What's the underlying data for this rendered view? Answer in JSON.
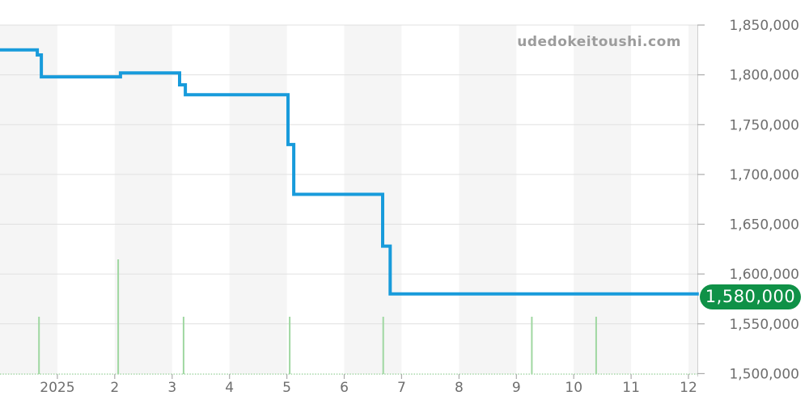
{
  "watermark_text": "udedokeitoushi.com",
  "current_price_badge": "1,580,000",
  "colors": {
    "line": "#189BDB",
    "spike": "#9FD7A1",
    "baseline_dotted": "#A6D8A8",
    "band": "#F5F5F5",
    "grid": "#E0E0E0",
    "axis_line": "#CFCFCF",
    "tick": "#ABABAB",
    "label_text": "#6E6E6E",
    "watermark_text": "#9C9C9C",
    "badge_bg": "#0F9147",
    "badge_text": "#FFFFFF"
  },
  "chart_data": {
    "type": "line",
    "style": "step-after",
    "title": "",
    "xlabel": "",
    "ylabel": "",
    "legend": "none",
    "grid": "horizontal",
    "x_axis": {
      "unit": "month",
      "tick_labels": [
        "2025",
        "2",
        "3",
        "4",
        "5",
        "6",
        "7",
        "8",
        "9",
        "10",
        "11",
        "12"
      ],
      "range_months": [
        0,
        12.15
      ],
      "background_bands": "alternating gray/white, one per month, gray starts at left edge"
    },
    "y_axis": {
      "position": "right",
      "min": 1500000,
      "max": 1850000,
      "tick_step": 50000,
      "ticks": [
        {
          "value": 1850000,
          "label": "1,850,000"
        },
        {
          "value": 1800000,
          "label": "1,800,000"
        },
        {
          "value": 1750000,
          "label": "1,750,000"
        },
        {
          "value": 1700000,
          "label": "1,700,000"
        },
        {
          "value": 1650000,
          "label": "1,650,000"
        },
        {
          "value": 1600000,
          "label": "1,600,000"
        },
        {
          "value": 1550000,
          "label": "1,550,000"
        },
        {
          "value": 1500000,
          "label": "1,500,000"
        }
      ]
    },
    "series": [
      {
        "name": "price",
        "points_month_value": [
          [
            0.0,
            1825000
          ],
          [
            0.65,
            1820000
          ],
          [
            0.72,
            1798000
          ],
          [
            2.1,
            1802000
          ],
          [
            3.13,
            1790000
          ],
          [
            3.23,
            1780000
          ],
          [
            5.02,
            1730000
          ],
          [
            5.12,
            1680000
          ],
          [
            6.67,
            1628000
          ],
          [
            6.8,
            1580000
          ]
        ],
        "end_month": 12.18
      }
    ],
    "event_spikes": {
      "description": "short light-green vertical marks on baseline",
      "points": [
        {
          "month": 0.68,
          "h": 1
        },
        {
          "month": 2.06,
          "h": 2
        },
        {
          "month": 3.2,
          "h": 1
        },
        {
          "month": 5.05,
          "h": 1
        },
        {
          "month": 6.68,
          "h": 1
        },
        {
          "month": 9.27,
          "h": 1
        },
        {
          "month": 10.39,
          "h": 1
        }
      ]
    },
    "current_price": 1580000
  }
}
